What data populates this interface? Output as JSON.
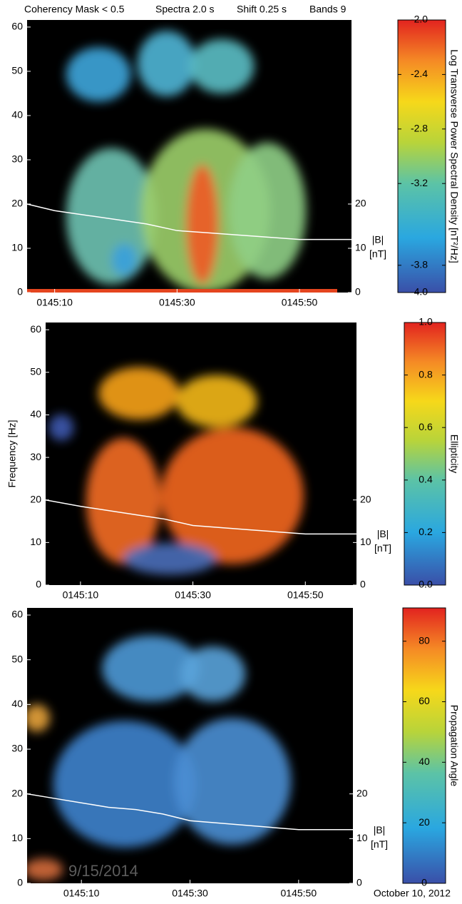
{
  "watermark": "9/15/2014",
  "chart_data": [
    {
      "type": "heatmap",
      "annotations": [
        "Coherency Mask < 0.5",
        "Spectra 2.0 s",
        "Shift 0.25 s",
        "Bands 9"
      ],
      "xlim": [
        5.5,
        58.5
      ],
      "xticks": [
        {
          "value": 10,
          "label": "0145:10"
        },
        {
          "value": 30,
          "label": "0145:30"
        },
        {
          "value": 50,
          "label": "0145:50"
        }
      ],
      "ylim": [
        0,
        61.6
      ],
      "yticks": [
        0,
        10,
        20,
        30,
        40,
        50,
        60
      ],
      "y2lim": [
        0,
        61.6
      ],
      "y2ticks": [
        0,
        10,
        20
      ],
      "y2label": "|B|",
      "y2unit": "[nT]",
      "colorbar": {
        "label": "Log Transverse Power Spectral Density [nT²/Hz]",
        "lim": [
          -4,
          -2
        ],
        "ticks": [
          {
            "value": -4,
            "label": "-4.0"
          },
          -3.8,
          -3.2,
          -2.8,
          -2.4,
          {
            "value": -2,
            "label": "-2.0"
          }
        ]
      },
      "series": [
        {
          "axis": "y2",
          "color": "#ffffff",
          "x": [
            5.5,
            10,
            15,
            20,
            25,
            30,
            35,
            40,
            45,
            50,
            54,
            58.5
          ],
          "values": [
            20,
            18.5,
            17.5,
            16.5,
            15.5,
            14,
            13.5,
            13,
            12.5,
            12,
            12,
            12
          ]
        }
      ]
    },
    {
      "type": "heatmap",
      "xlim": [
        3.8,
        59.1
      ],
      "xticks": [
        {
          "value": 10,
          "label": "0145:10"
        },
        {
          "value": 30,
          "label": "0145:30"
        },
        {
          "value": 50,
          "label": "0145:50"
        }
      ],
      "ylim": [
        0,
        61.7
      ],
      "yticks": [
        0,
        10,
        20,
        30,
        40,
        50,
        60
      ],
      "ylabel": "Frequency [Hz]",
      "y2lim": [
        0,
        61.7
      ],
      "y2ticks": [
        0,
        10,
        20
      ],
      "y2label": "|B|",
      "y2unit": "[nT]",
      "colorbar": {
        "label": "Ellipticity",
        "lim": [
          0,
          1
        ],
        "ticks": [
          {
            "value": 0,
            "label": "0.0"
          },
          0.2,
          0.4,
          0.6,
          0.8,
          {
            "value": 1,
            "label": "1.0"
          }
        ]
      },
      "series": [
        {
          "axis": "y2",
          "color": "#ffffff",
          "x": [
            3.8,
            10,
            15,
            20,
            25,
            30,
            35,
            40,
            45,
            50,
            54,
            59.1
          ],
          "values": [
            20,
            18.5,
            17.5,
            16.5,
            15.5,
            14,
            13.5,
            13,
            12.5,
            12,
            12,
            12
          ]
        }
      ]
    },
    {
      "type": "heatmap",
      "xlim": [
        0,
        60
      ],
      "xticks": [
        {
          "value": 10,
          "label": "0145:10"
        },
        {
          "value": 30,
          "label": "0145:30"
        },
        {
          "value": 50,
          "label": "0145:50"
        }
      ],
      "ylim": [
        0,
        61.6
      ],
      "yticks": [
        0,
        10,
        20,
        30,
        40,
        50,
        60
      ],
      "y2lim": [
        0,
        61.6
      ],
      "y2ticks": [
        0,
        10,
        20
      ],
      "y2label": "|B|",
      "y2unit": "[nT]",
      "date_label": "October 10, 2012",
      "colorbar": {
        "label": "Propagation Angle",
        "lim": [
          0,
          91
        ],
        "ticks": [
          0,
          20,
          40,
          60,
          80
        ]
      },
      "series": [
        {
          "axis": "y2",
          "color": "#ffffff",
          "x": [
            0,
            5,
            10,
            15,
            20,
            25,
            30,
            35,
            40,
            45,
            50,
            55,
            60
          ],
          "values": [
            20,
            19,
            18,
            17,
            16.5,
            15.5,
            14,
            13.5,
            13,
            12.5,
            12,
            12,
            12
          ]
        }
      ]
    }
  ]
}
